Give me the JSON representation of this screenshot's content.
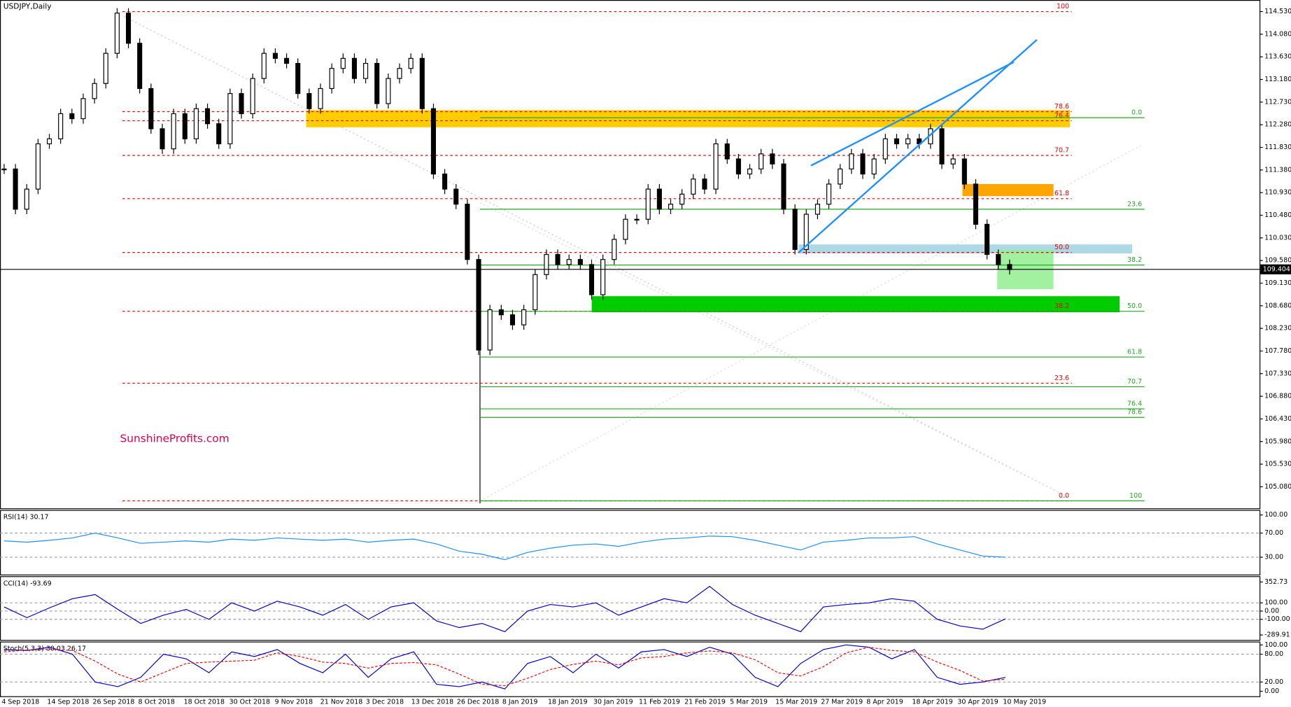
{
  "chart_data": {
    "type": "candlestick",
    "title": "USDJPY,Daily",
    "watermark": "SunshineProfits.com",
    "current_price": {
      "value": 109.404,
      "label": "109.404"
    },
    "ylim": [
      105.08,
      114.53
    ],
    "yticks": [
      {
        "value": 114.53,
        "label": "114.530"
      },
      {
        "value": 114.08,
        "label": "114.080"
      },
      {
        "value": 113.63,
        "label": "113.630"
      },
      {
        "value": 113.18,
        "label": "113.180"
      },
      {
        "value": 112.73,
        "label": "112.730"
      },
      {
        "value": 112.28,
        "label": "112.280"
      },
      {
        "value": 111.83,
        "label": "111.830"
      },
      {
        "value": 111.38,
        "label": "111.380"
      },
      {
        "value": 110.93,
        "label": "110.930"
      },
      {
        "value": 110.48,
        "label": "110.480"
      },
      {
        "value": 110.03,
        "label": "110.030"
      },
      {
        "value": 109.58,
        "label": "109.580"
      },
      {
        "value": 109.13,
        "label": "109.130"
      },
      {
        "value": 108.68,
        "label": "108.680"
      },
      {
        "value": 108.23,
        "label": "108.230"
      },
      {
        "value": 107.78,
        "label": "107.780"
      },
      {
        "value": 107.33,
        "label": "107.330"
      },
      {
        "value": 106.88,
        "label": "106.880"
      },
      {
        "value": 106.43,
        "label": "106.430"
      },
      {
        "value": 105.98,
        "label": "105.980"
      },
      {
        "value": 105.53,
        "label": "105.530"
      },
      {
        "value": 105.08,
        "label": "105.080"
      }
    ],
    "dates": [
      "4 Sep 2018",
      "14 Sep 2018",
      "26 Sep 2018",
      "8 Oct 2018",
      "18 Oct 2018",
      "30 Oct 2018",
      "9 Nov 2018",
      "21 Nov 2018",
      "3 Dec 2018",
      "13 Dec 2018",
      "26 Dec 2018",
      "8 Jan 2019",
      "18 Jan 2019",
      "30 Jan 2019",
      "11 Feb 2019",
      "21 Feb 2019",
      "5 Mar 2019",
      "15 Mar 2019",
      "27 Mar 2019",
      "8 Apr 2019",
      "18 Apr 2019",
      "30 Apr 2019",
      "10 May 2019"
    ],
    "closes": [
      111.4,
      110.6,
      111.0,
      111.9,
      112.0,
      112.5,
      112.4,
      112.8,
      113.1,
      113.7,
      114.5,
      113.9,
      113.0,
      112.2,
      111.8,
      112.5,
      112.0,
      112.6,
      112.3,
      111.9,
      112.9,
      112.5,
      113.2,
      113.7,
      113.6,
      113.5,
      112.9,
      112.6,
      113.0,
      113.4,
      113.6,
      113.2,
      113.5,
      112.7,
      113.2,
      113.4,
      113.6,
      112.6,
      111.3,
      111.0,
      110.7,
      109.6,
      107.8,
      108.6,
      108.5,
      108.3,
      108.6,
      109.3,
      109.7,
      109.5,
      109.6,
      109.5,
      108.9,
      109.6,
      110.0,
      110.4,
      110.4,
      111.0,
      110.6,
      110.7,
      110.9,
      111.2,
      111.0,
      111.9,
      111.6,
      111.3,
      111.4,
      111.7,
      111.5,
      110.6,
      109.8,
      110.5,
      110.7,
      111.1,
      111.4,
      111.7,
      111.3,
      111.6,
      112.0,
      111.9,
      112.0,
      111.9,
      112.2,
      111.5,
      111.6,
      111.1,
      110.3,
      109.7,
      109.5,
      109.4
    ],
    "fib_red": [
      {
        "label": "100",
        "price": 114.53
      },
      {
        "label": "78.6",
        "price": 112.54
      },
      {
        "label": "76.4",
        "price": 112.36
      },
      {
        "label": "70.7",
        "price": 111.67
      },
      {
        "label": "61.8",
        "price": 110.81
      },
      {
        "label": "50.0",
        "price": 109.74
      },
      {
        "label": "38.2",
        "price": 108.57
      },
      {
        "label": "23.6",
        "price": 107.14
      },
      {
        "label": "0.0",
        "price": 104.8
      }
    ],
    "fib_green": [
      {
        "label": "0.0",
        "price": 112.42
      },
      {
        "label": "23.6",
        "price": 110.6
      },
      {
        "label": "38.2",
        "price": 109.49
      },
      {
        "label": "50.0",
        "price": 108.57
      },
      {
        "label": "61.8",
        "price": 107.66
      },
      {
        "label": "70.7",
        "price": 107.07
      },
      {
        "label": "76.4",
        "price": 106.63
      },
      {
        "label": "78.6",
        "price": 106.46
      },
      {
        "label": "100",
        "price": 104.8
      }
    ],
    "zones": [
      {
        "color": "#ffcc00",
        "top": 112.57,
        "bottom": 112.23
      },
      {
        "color": "#ffa500",
        "top": 111.1,
        "bottom": 110.86
      },
      {
        "color": "#add8e6",
        "top": 109.9,
        "bottom": 109.72
      },
      {
        "color": "#90ee90",
        "top": 109.79,
        "bottom": 109.01
      },
      {
        "color": "#00cc00",
        "top": 108.87,
        "bottom": 108.55
      }
    ],
    "indicators": [
      {
        "title": "RSI(14) 30.17",
        "ylim": [
          0,
          100
        ],
        "yticks": [
          {
            "value": 100,
            "label": "100.00"
          },
          {
            "value": 70,
            "label": "70.00"
          },
          {
            "value": 30,
            "label": "30.00"
          }
        ],
        "levels": [
          70,
          30
        ],
        "series": [
          {
            "color": "#1e90ff",
            "values": [
              57,
              55,
              58,
              62,
              70,
              62,
              53,
              55,
              57,
              55,
              60,
              58,
              62,
              60,
              58,
              60,
              55,
              58,
              60,
              52,
              40,
              35,
              26,
              38,
              45,
              50,
              52,
              48,
              55,
              60,
              62,
              65,
              64,
              58,
              50,
              42,
              55,
              58,
              62,
              62,
              64,
              52,
              42,
              32,
              30
            ]
          }
        ]
      },
      {
        "title": "CCI(14) -93.69",
        "ylim": [
          -289.91,
          352.73
        ],
        "yticks": [
          {
            "value": 352.73,
            "label": "352.73"
          },
          {
            "value": 100,
            "label": "100.00"
          },
          {
            "value": 0,
            "label": "0.00"
          },
          {
            "value": -100,
            "label": "-100.00"
          },
          {
            "value": -289.91,
            "label": "-289.91"
          }
        ],
        "levels": [
          100,
          0,
          -100
        ],
        "series": [
          {
            "color": "#0000cd",
            "values": [
              50,
              -80,
              40,
              150,
              200,
              20,
              -150,
              -50,
              20,
              -100,
              100,
              0,
              120,
              50,
              -50,
              80,
              -100,
              50,
              100,
              -120,
              -200,
              -150,
              -250,
              0,
              80,
              50,
              100,
              -50,
              50,
              150,
              100,
              300,
              80,
              -50,
              -150,
              -250,
              50,
              80,
              100,
              150,
              120,
              -100,
              -180,
              -220,
              -94
            ]
          }
        ]
      },
      {
        "title": "Stoch(5,3,3) 30.03 26.17",
        "ylim": [
          0,
          100
        ],
        "yticks": [
          {
            "value": 100,
            "label": "100.00"
          },
          {
            "value": 80,
            "label": "80.00"
          },
          {
            "value": 20,
            "label": "20.00"
          },
          {
            "value": 0,
            "label": "0.00"
          }
        ],
        "levels": [
          80,
          20
        ],
        "series": [
          {
            "color": "#0000cd",
            "values": [
              90,
              88,
              95,
              80,
              20,
              10,
              30,
              80,
              70,
              40,
              85,
              75,
              90,
              60,
              40,
              80,
              30,
              70,
              85,
              15,
              10,
              20,
              5,
              60,
              75,
              40,
              80,
              50,
              85,
              90,
              75,
              95,
              80,
              30,
              10,
              60,
              90,
              100,
              95,
              70,
              90,
              30,
              15,
              20,
              30
            ]
          },
          {
            "color": "#ff0000",
            "dash": true,
            "values": [
              85,
              89,
              91,
              88,
              65,
              37,
              20,
              40,
              60,
              63,
              65,
              67,
              83,
              75,
              63,
              60,
              50,
              60,
              62,
              57,
              37,
              15,
              12,
              28,
              47,
              58,
              65,
              57,
              72,
              75,
              83,
              87,
              83,
              68,
              40,
              33,
              53,
              83,
              95,
              88,
              85,
              63,
              45,
              22,
              26
            ]
          }
        ]
      }
    ]
  }
}
